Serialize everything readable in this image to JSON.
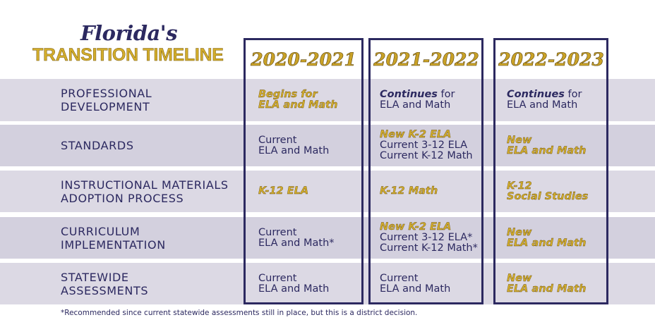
{
  "title": {
    "script": "Florida's",
    "main": "TRANSITION TIMELINE"
  },
  "columns": [
    "2020-2021",
    "2021-2022",
    "2022-2023"
  ],
  "rows": [
    {
      "label": [
        "PROFESSIONAL",
        "DEVELOPMENT"
      ],
      "cells": [
        {
          "gold": [
            "Begins for",
            "ELA and Math"
          ],
          "plain": []
        },
        {
          "bi": "Continues",
          "rest": " for",
          "plain": [
            "ELA and Math"
          ]
        },
        {
          "bi": "Continues",
          "rest": " for",
          "plain": [
            "ELA and Math"
          ]
        }
      ]
    },
    {
      "label": [
        "STANDARDS"
      ],
      "cells": [
        {
          "gold": [],
          "plain": [
            "Current",
            "ELA and Math"
          ]
        },
        {
          "gold": [
            "New K-2 ELA"
          ],
          "plain": [
            "Current 3-12 ELA",
            "Current K-12 Math"
          ]
        },
        {
          "gold": [
            "New",
            "ELA and Math"
          ],
          "plain": []
        }
      ]
    },
    {
      "label": [
        "INSTRUCTIONAL MATERIALS",
        "ADOPTION PROCESS"
      ],
      "cells": [
        {
          "gold": [
            "K-12 ELA"
          ],
          "plain": []
        },
        {
          "gold": [
            "K-12 Math"
          ],
          "plain": []
        },
        {
          "gold": [
            "K-12",
            "Social Studies"
          ],
          "plain": []
        }
      ]
    },
    {
      "label": [
        "CURRICULUM",
        "IMPLEMENTATION"
      ],
      "cells": [
        {
          "gold": [],
          "plain": [
            "Current",
            "ELA and Math*"
          ]
        },
        {
          "gold": [
            "New K-2 ELA"
          ],
          "plain": [
            "Current 3-12 ELA*",
            "Current K-12 Math*"
          ]
        },
        {
          "gold": [
            "New",
            "ELA and Math"
          ],
          "plain": []
        }
      ]
    },
    {
      "label": [
        "STATEWIDE",
        "ASSESSMENTS"
      ],
      "cells": [
        {
          "gold": [],
          "plain": [
            "Current",
            "ELA and Math"
          ]
        },
        {
          "gold": [],
          "plain": [
            "Current",
            "ELA and Math"
          ]
        },
        {
          "gold": [
            "New",
            "ELA and Math"
          ],
          "plain": []
        }
      ]
    }
  ],
  "footnote": "*Recommended since current statewide assessments still in place, but this is a district decision."
}
